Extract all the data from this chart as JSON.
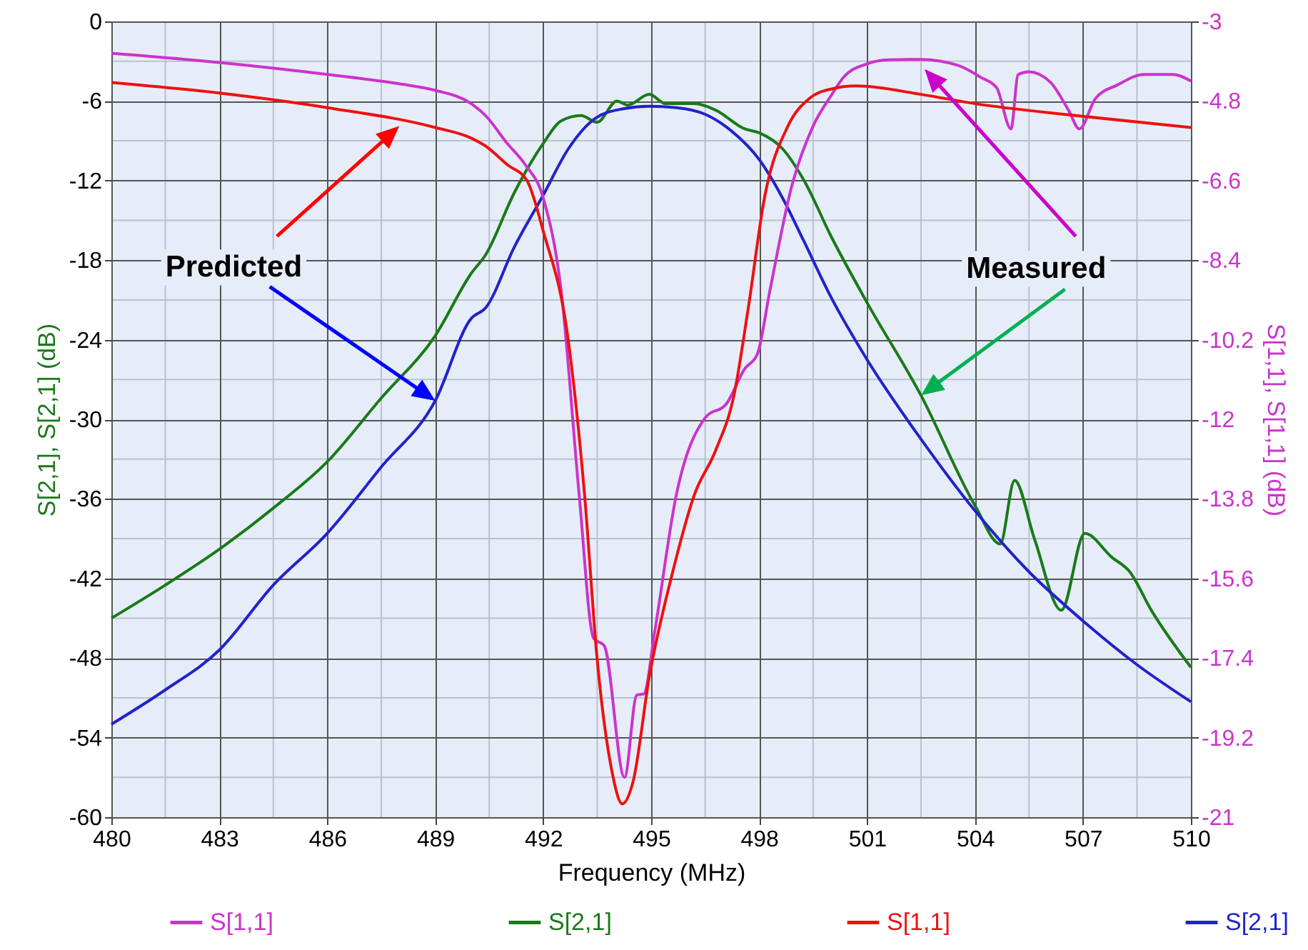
{
  "chart_data": {
    "type": "line",
    "xlabel": "Frequency (MHz)",
    "ylabel": "S[2,1],  S[2,1] (dB)",
    "y2label": "S[1,1], S[1,1] (dB)",
    "xlim": [
      480,
      510
    ],
    "xticks": [
      480,
      483,
      486,
      489,
      492,
      495,
      498,
      501,
      504,
      507,
      510
    ],
    "ylim": [
      -60,
      0
    ],
    "yticks": [
      -60,
      -54,
      -48,
      -42,
      -36,
      -30,
      -24,
      -18,
      -12,
      -6,
      0
    ],
    "y2lim": [
      -21,
      -3
    ],
    "y2ticks": [
      -21,
      -19.2,
      -17.4,
      -15.6,
      -13.8,
      -12,
      -10.2,
      -8.4,
      -6.6,
      -4.8,
      -3
    ],
    "grid": true,
    "legend": "bottom",
    "annotations": [
      "Predicted",
      "Measured"
    ],
    "series": [
      {
        "name": "S[1,1]",
        "color": "#cc33cc",
        "axis": "y2",
        "x": [
          480,
          483,
          486,
          488,
          489,
          490,
          490.4,
          491,
          491.5,
          492,
          492.5,
          493,
          493.4,
          493.7,
          494.26,
          494.6,
          494.8,
          495.1,
          495.7,
          496.5,
          497.1,
          497.6,
          497.95,
          498.3,
          498.9,
          499.5,
          500,
          500.35,
          501,
          501.6,
          502.5,
          503.55,
          504.15,
          504.6,
          505,
          505.2,
          505.5,
          506.1,
          506.6,
          506.9,
          507.35,
          507.95,
          508.7,
          509.5,
          510
        ],
        "values": [
          -3.72,
          -3.93,
          -4.2,
          -4.41,
          -4.56,
          -4.86,
          -5.13,
          -5.76,
          -6.24,
          -6.99,
          -9.09,
          -13.71,
          -16.95,
          -17.13,
          -20.1,
          -18.24,
          -18.21,
          -16.8,
          -13.71,
          -11.97,
          -11.64,
          -10.86,
          -10.53,
          -9.09,
          -6.75,
          -5.37,
          -4.68,
          -4.26,
          -3.96,
          -3.87,
          -3.86,
          -4.0,
          -4.26,
          -4.5,
          -5.43,
          -4.2,
          -4.14,
          -4.38,
          -5.01,
          -5.43,
          -4.74,
          -4.44,
          -4.2,
          -4.2,
          -4.35
        ]
      },
      {
        "name": "S[2,1]",
        "color": "#1a7a1a",
        "x": [
          480,
          481.5,
          483,
          484.5,
          486,
          487.5,
          489,
          490,
          490.4,
          491.2,
          492,
          492.5,
          493.05,
          493.5,
          494.05,
          494.35,
          494.95,
          495.4,
          496.2,
          496.8,
          497.6,
          498,
          498.65,
          499.25,
          500,
          501,
          502.5,
          504,
          504.7,
          505.1,
          505.65,
          506.4,
          507.05,
          507.8,
          508.3,
          508.9,
          510
        ],
        "values": [
          -45.0,
          -42.5,
          -39.8,
          -36.7,
          -33.2,
          -28.4,
          -23.7,
          -19.0,
          -17.6,
          -12.9,
          -9.2,
          -7.5,
          -7.1,
          -7.6,
          -6.0,
          -6.3,
          -5.5,
          -6.2,
          -6.2,
          -6.7,
          -8.1,
          -8.4,
          -9.6,
          -12.0,
          -16.2,
          -21.2,
          -28.2,
          -36.5,
          -39.4,
          -34.6,
          -39.0,
          -44.4,
          -38.6,
          -40.4,
          -41.5,
          -44.4,
          -48.7
        ]
      },
      {
        "name": "S[1,1]",
        "color": "#ee1111",
        "axis": "y2",
        "x": [
          480,
          483,
          486,
          489,
          490,
          490.4,
          491,
          491.55,
          492,
          492.7,
          493.15,
          493.5,
          493.9,
          494.2,
          494.5,
          494.95,
          495.6,
          496.2,
          496.8,
          497.3,
          497.7,
          498.15,
          498.8,
          499.4,
          500,
          500.7,
          502.5,
          504,
          506.8,
          510
        ],
        "values": [
          -4.38,
          -4.62,
          -4.95,
          -5.4,
          -5.64,
          -5.82,
          -6.24,
          -6.6,
          -7.74,
          -10.23,
          -13.71,
          -17.43,
          -19.92,
          -20.7,
          -20.19,
          -17.82,
          -15.45,
          -13.71,
          -12.69,
          -11.46,
          -9.48,
          -6.99,
          -5.37,
          -4.74,
          -4.53,
          -4.46,
          -4.65,
          -4.86,
          -5.13,
          -5.4
        ]
      },
      {
        "name": "S[2,1]",
        "color": "#2222cc",
        "x": [
          480,
          481.5,
          483,
          484.5,
          486,
          487.5,
          489,
          490,
          490.4,
          491.2,
          492,
          492.7,
          493.45,
          494.2,
          494.95,
          495.7,
          496.5,
          497.25,
          498,
          498.65,
          499.25,
          500,
          501,
          502.5,
          504,
          505.5,
          507,
          508.5,
          510
        ],
        "values": [
          -53.0,
          -50.4,
          -47.4,
          -42.5,
          -38.6,
          -33.6,
          -28.6,
          -22.4,
          -21.6,
          -17.0,
          -13.1,
          -9.6,
          -7.3,
          -6.6,
          -6.4,
          -6.5,
          -7.0,
          -8.3,
          -10.4,
          -13.3,
          -16.6,
          -20.8,
          -25.5,
          -31.5,
          -36.9,
          -41.5,
          -45.2,
          -48.5,
          -51.3
        ]
      }
    ]
  }
}
